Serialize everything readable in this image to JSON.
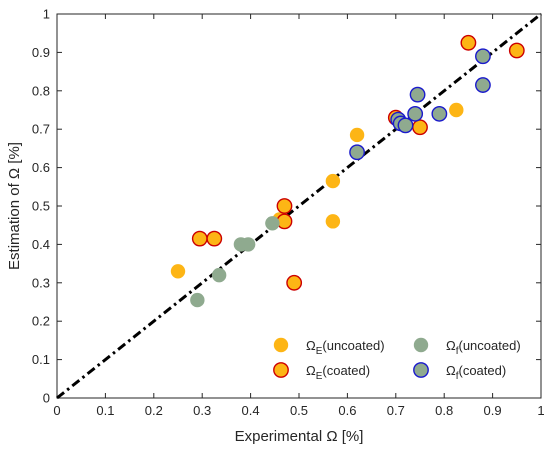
{
  "chart_data": {
    "type": "scatter",
    "xlabel": "Experimental Ω [%]",
    "ylabel": "Estimation of Ω [%]",
    "xlim": [
      0,
      1
    ],
    "ylim": [
      0,
      1
    ],
    "xticks": [
      "0",
      "0.1",
      "0.2",
      "0.3",
      "0.4",
      "0.5",
      "0.6",
      "0.7",
      "0.8",
      "0.9",
      "1"
    ],
    "yticks": [
      "0",
      "0.1",
      "0.2",
      "0.3",
      "0.4",
      "0.5",
      "0.6",
      "0.7",
      "0.8",
      "0.9",
      "1"
    ],
    "grid": false,
    "legend_position": "bottom-right",
    "reference_line": {
      "type": "y=x",
      "style": "dash-dot",
      "color": "#000000"
    },
    "series": [
      {
        "legend_base": "Ω",
        "legend_sub": "E",
        "legend_suffix": "(uncoated)",
        "fill": "#FDB515",
        "edge": "#FDB515",
        "points": [
          {
            "x": 0.25,
            "y": 0.33
          },
          {
            "x": 0.46,
            "y": 0.465
          },
          {
            "x": 0.57,
            "y": 0.565
          },
          {
            "x": 0.57,
            "y": 0.46
          },
          {
            "x": 0.62,
            "y": 0.685
          },
          {
            "x": 0.825,
            "y": 0.75
          }
        ]
      },
      {
        "legend_base": "Ω",
        "legend_sub": "E",
        "legend_suffix": "(coated)",
        "fill": "#FDB515",
        "edge": "#CC0000",
        "points": [
          {
            "x": 0.295,
            "y": 0.415
          },
          {
            "x": 0.325,
            "y": 0.415
          },
          {
            "x": 0.47,
            "y": 0.5
          },
          {
            "x": 0.47,
            "y": 0.46
          },
          {
            "x": 0.49,
            "y": 0.3
          },
          {
            "x": 0.7,
            "y": 0.73
          },
          {
            "x": 0.75,
            "y": 0.705
          },
          {
            "x": 0.85,
            "y": 0.925
          },
          {
            "x": 0.95,
            "y": 0.905
          }
        ]
      },
      {
        "legend_base": "Ω",
        "legend_sub": "f",
        "legend_suffix": "(uncoated)",
        "fill": "#8FAA8F",
        "edge": "#8FAA8F",
        "points": [
          {
            "x": 0.29,
            "y": 0.255
          },
          {
            "x": 0.335,
            "y": 0.32
          },
          {
            "x": 0.38,
            "y": 0.4
          },
          {
            "x": 0.395,
            "y": 0.4
          },
          {
            "x": 0.445,
            "y": 0.455
          }
        ]
      },
      {
        "legend_base": "Ω",
        "legend_sub": "f",
        "legend_suffix": "(coated)",
        "fill": "#8FAA8F",
        "edge": "#1A1ACC",
        "points": [
          {
            "x": 0.62,
            "y": 0.64
          },
          {
            "x": 0.705,
            "y": 0.725
          },
          {
            "x": 0.71,
            "y": 0.715
          },
          {
            "x": 0.72,
            "y": 0.71
          },
          {
            "x": 0.74,
            "y": 0.74
          },
          {
            "x": 0.745,
            "y": 0.79
          },
          {
            "x": 0.79,
            "y": 0.74
          },
          {
            "x": 0.88,
            "y": 0.89
          },
          {
            "x": 0.88,
            "y": 0.815
          }
        ]
      }
    ]
  }
}
